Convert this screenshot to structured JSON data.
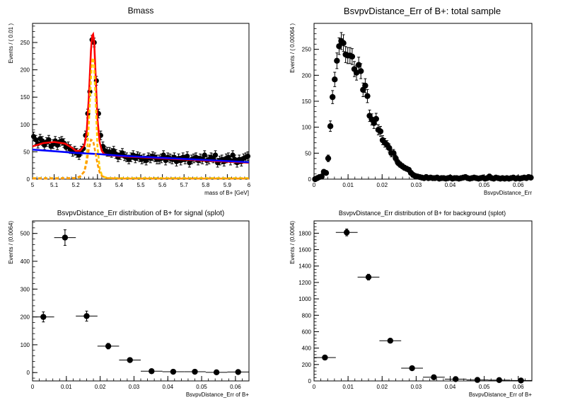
{
  "chart_data": [
    {
      "type": "line",
      "title": "Bmass",
      "xlabel": "mass of B+ [GeV]",
      "ylabel": "Events / ( 0.01 )",
      "xlim": [
        5.0,
        6.0
      ],
      "ylim": [
        0,
        285
      ],
      "xticks": [
        "5",
        "5.1",
        "5.2",
        "5.3",
        "5.4",
        "5.5",
        "5.6",
        "5.7",
        "5.8",
        "5.9",
        "6"
      ],
      "yticks": [
        "0",
        "50",
        "100",
        "150",
        "200",
        "250"
      ],
      "grid": false,
      "series": [
        {
          "name": "",
          "style": "points",
          "color": "#000000",
          "x": [
            5.005,
            5.015,
            5.025,
            5.035,
            5.045,
            5.055,
            5.065,
            5.075,
            5.085,
            5.095,
            5.105,
            5.115,
            5.125,
            5.135,
            5.145,
            5.155,
            5.165,
            5.175,
            5.185,
            5.195,
            5.205,
            5.215,
            5.225,
            5.235,
            5.245,
            5.255,
            5.265,
            5.275,
            5.285,
            5.295,
            5.305,
            5.315,
            5.325,
            5.335,
            5.345,
            5.355,
            5.365,
            5.375,
            5.385,
            5.395,
            5.405,
            5.415,
            5.425,
            5.435,
            5.445,
            5.455,
            5.465,
            5.475,
            5.485,
            5.495,
            5.505,
            5.515,
            5.525,
            5.535,
            5.545,
            5.555,
            5.565,
            5.575,
            5.585,
            5.595,
            5.605,
            5.615,
            5.625,
            5.635,
            5.645,
            5.655,
            5.665,
            5.675,
            5.685,
            5.695,
            5.705,
            5.715,
            5.725,
            5.735,
            5.745,
            5.755,
            5.765,
            5.775,
            5.785,
            5.795,
            5.805,
            5.815,
            5.825,
            5.835,
            5.845,
            5.855,
            5.865,
            5.875,
            5.885,
            5.895,
            5.905,
            5.915,
            5.925,
            5.935,
            5.945,
            5.955,
            5.965,
            5.975,
            5.985,
            5.995
          ],
          "y": [
            78,
            72,
            65,
            74,
            70,
            62,
            68,
            72,
            60,
            64,
            70,
            62,
            68,
            70,
            66,
            58,
            60,
            55,
            50,
            52,
            48,
            44,
            52,
            56,
            80,
            120,
            160,
            255,
            250,
            180,
            120,
            80,
            60,
            52,
            50,
            50,
            48,
            52,
            46,
            40,
            44,
            48,
            42,
            40,
            36,
            40,
            44,
            38,
            42,
            40,
            36,
            38,
            34,
            40,
            38,
            42,
            40,
            36,
            36,
            38,
            44,
            34,
            40,
            38,
            36,
            40,
            32,
            38,
            34,
            40,
            36,
            42,
            30,
            36,
            38,
            40,
            34,
            38,
            36,
            44,
            34,
            36,
            40,
            38,
            44,
            30,
            34,
            36,
            32,
            38,
            40,
            34,
            44,
            36,
            30,
            36,
            32,
            38,
            40,
            42
          ],
          "yerr": 8
        },
        {
          "name": "",
          "style": "line",
          "color": "#ff0000",
          "x": [
            5.0,
            5.05,
            5.1,
            5.15,
            5.18,
            5.2,
            5.22,
            5.24,
            5.25,
            5.26,
            5.27,
            5.275,
            5.28,
            5.285,
            5.29,
            5.3,
            5.31,
            5.32,
            5.33,
            5.35,
            5.4,
            5.5,
            5.6,
            5.7,
            5.8,
            5.9,
            6.0
          ],
          "y": [
            60,
            66,
            68,
            65,
            58,
            52,
            52,
            62,
            85,
            150,
            235,
            262,
            265,
            250,
            205,
            110,
            68,
            52,
            46,
            44,
            42,
            40,
            38,
            36,
            34,
            32,
            30
          ]
        },
        {
          "name": "",
          "style": "line",
          "color": "#0000ff",
          "x": [
            5.0,
            5.1,
            5.2,
            5.3,
            5.4,
            5.5,
            5.6,
            5.7,
            5.8,
            5.9,
            6.0
          ],
          "y": [
            54,
            51,
            48,
            46,
            43,
            41,
            39,
            37,
            35,
            33,
            31
          ]
        },
        {
          "name": "",
          "style": "dashed",
          "color": "#ffcc00",
          "x": [
            5.0,
            5.1,
            5.2,
            5.22,
            5.24,
            5.25,
            5.26,
            5.27,
            5.275,
            5.28,
            5.285,
            5.29,
            5.3,
            5.31,
            5.32,
            5.33,
            5.35,
            5.4,
            5.5,
            5.6,
            5.7,
            5.8,
            5.9,
            6.0
          ],
          "y": [
            2,
            2,
            2,
            4,
            15,
            38,
            100,
            185,
            215,
            222,
            205,
            160,
            60,
            20,
            8,
            4,
            2,
            2,
            2,
            2,
            2,
            2,
            2,
            2
          ]
        },
        {
          "name": "",
          "style": "dashed",
          "color": "#ff9900",
          "x": [
            5.0,
            5.1,
            5.2,
            5.22,
            5.24,
            5.25,
            5.26,
            5.27,
            5.28,
            5.29,
            5.3,
            5.31,
            5.32,
            5.34,
            5.4,
            5.6,
            5.8,
            6.0
          ],
          "y": [
            1,
            1,
            2,
            5,
            14,
            30,
            55,
            72,
            70,
            50,
            28,
            12,
            6,
            2,
            1,
            1,
            1,
            1
          ]
        }
      ]
    },
    {
      "type": "scatter",
      "title": "BsvpvDistance_Err of B+: total sample",
      "xlabel": "BsvpvDistance_Err",
      "ylabel": "Events / ( 0.00064 )",
      "xlim": [
        0,
        0.064
      ],
      "ylim": [
        0,
        300
      ],
      "xticks": [
        "0",
        "0.01",
        "0.02",
        "0.03",
        "0.04",
        "0.05",
        "0.06"
      ],
      "yticks": [
        "0",
        "50",
        "100",
        "150",
        "200",
        "250"
      ],
      "grid": false,
      "series": [
        {
          "name": "",
          "color": "#000000",
          "x": [
            0.00032,
            0.00096,
            0.0016,
            0.00224,
            0.00288,
            0.00352,
            0.00416,
            0.0048,
            0.00544,
            0.00608,
            0.00672,
            0.00736,
            0.008,
            0.00864,
            0.00928,
            0.00992,
            0.01056,
            0.0112,
            0.01184,
            0.01248,
            0.01312,
            0.01376,
            0.0144,
            0.01504,
            0.01568,
            0.01632,
            0.01696,
            0.0176,
            0.01824,
            0.01888,
            0.01952,
            0.02016,
            0.0208,
            0.02144,
            0.02208,
            0.02272,
            0.02336,
            0.024,
            0.02464,
            0.02528,
            0.02592,
            0.02656,
            0.0272,
            0.02784,
            0.02848,
            0.02912,
            0.02976,
            0.0304,
            0.03104,
            0.03168,
            0.03232,
            0.03296,
            0.0336,
            0.03424,
            0.03488,
            0.03552,
            0.03616,
            0.0368,
            0.03744,
            0.03808,
            0.03872,
            0.03936,
            0.04,
            0.04064,
            0.04128,
            0.04192,
            0.04256,
            0.0432,
            0.04384,
            0.04448,
            0.04512,
            0.04576,
            0.0464,
            0.04704,
            0.04768,
            0.04832,
            0.04896,
            0.0496,
            0.05024,
            0.05088,
            0.05152,
            0.05216,
            0.0528,
            0.05344,
            0.05408,
            0.05472,
            0.05536,
            0.056,
            0.05664,
            0.05728,
            0.05792,
            0.05856,
            0.0592,
            0.05984,
            0.06048,
            0.06112,
            0.06176,
            0.0624,
            0.06304,
            0.06368
          ],
          "y": [
            0,
            2,
            4,
            5,
            14,
            12,
            40,
            102,
            158,
            192,
            228,
            256,
            266,
            262,
            240,
            238,
            238,
            236,
            212,
            205,
            220,
            208,
            172,
            180,
            160,
            122,
            115,
            108,
            116,
            95,
            92,
            75,
            70,
            66,
            60,
            50,
            50,
            40,
            32,
            28,
            25,
            22,
            20,
            18,
            12,
            8,
            6,
            5,
            4,
            3,
            2,
            4,
            2,
            3,
            2,
            2,
            3,
            1,
            2,
            2,
            1,
            2,
            3,
            1,
            2,
            2,
            1,
            2,
            3,
            4,
            2,
            1,
            2,
            3,
            2,
            1,
            2,
            3,
            1,
            2,
            5,
            2,
            1,
            3,
            2,
            1,
            2,
            1,
            2,
            1,
            2,
            3,
            1,
            2,
            1,
            2,
            3,
            2,
            4,
            3
          ],
          "yerr_scale": 1
        }
      ]
    },
    {
      "type": "scatter",
      "title": "BsvpvDistance_Err distribution of B+ for signal (splot)",
      "xlabel": "BsvpvDistance_Err of B+",
      "ylabel": "Events / (0.0064)",
      "xlim": [
        0,
        0.064
      ],
      "ylim": [
        -30,
        545
      ],
      "xticks": [
        "0",
        "0.01",
        "0.02",
        "0.03",
        "0.04",
        "0.05",
        "0.06"
      ],
      "yticks": [
        "0",
        "100",
        "200",
        "300",
        "400",
        "500"
      ],
      "grid": false,
      "series": [
        {
          "name": "",
          "color": "#000000",
          "x": [
            0.0032,
            0.0096,
            0.016,
            0.0224,
            0.0288,
            0.0352,
            0.0416,
            0.048,
            0.0544,
            0.0608
          ],
          "y": [
            200,
            485,
            203,
            95,
            45,
            5,
            3,
            3,
            1,
            2
          ],
          "yerr": [
            18,
            28,
            18,
            10,
            6,
            3,
            2,
            2,
            2,
            2
          ]
        }
      ]
    },
    {
      "type": "scatter",
      "title": "BsvpvDistance_Err distribution of B+ for background (splot)",
      "xlabel": "BsvpvDistance_Err of B+",
      "ylabel": "Events / (0.0064)",
      "xlim": [
        0,
        0.064
      ],
      "ylim": [
        0,
        1950
      ],
      "xticks": [
        "0",
        "0.01",
        "0.02",
        "0.03",
        "0.04",
        "0.05",
        "0.06"
      ],
      "yticks": [
        "0",
        "200",
        "400",
        "600",
        "800",
        "1000",
        "1200",
        "1400",
        "1600",
        "1800"
      ],
      "grid": false,
      "series": [
        {
          "name": "",
          "color": "#000000",
          "x": [
            0.0032,
            0.0096,
            0.016,
            0.0224,
            0.0288,
            0.0352,
            0.0416,
            0.048,
            0.0544,
            0.0608
          ],
          "y": [
            285,
            1810,
            1265,
            490,
            155,
            45,
            22,
            12,
            10,
            5
          ],
          "yerr": [
            17,
            42,
            35,
            22,
            13,
            7,
            5,
            4,
            3,
            3
          ]
        }
      ]
    }
  ]
}
